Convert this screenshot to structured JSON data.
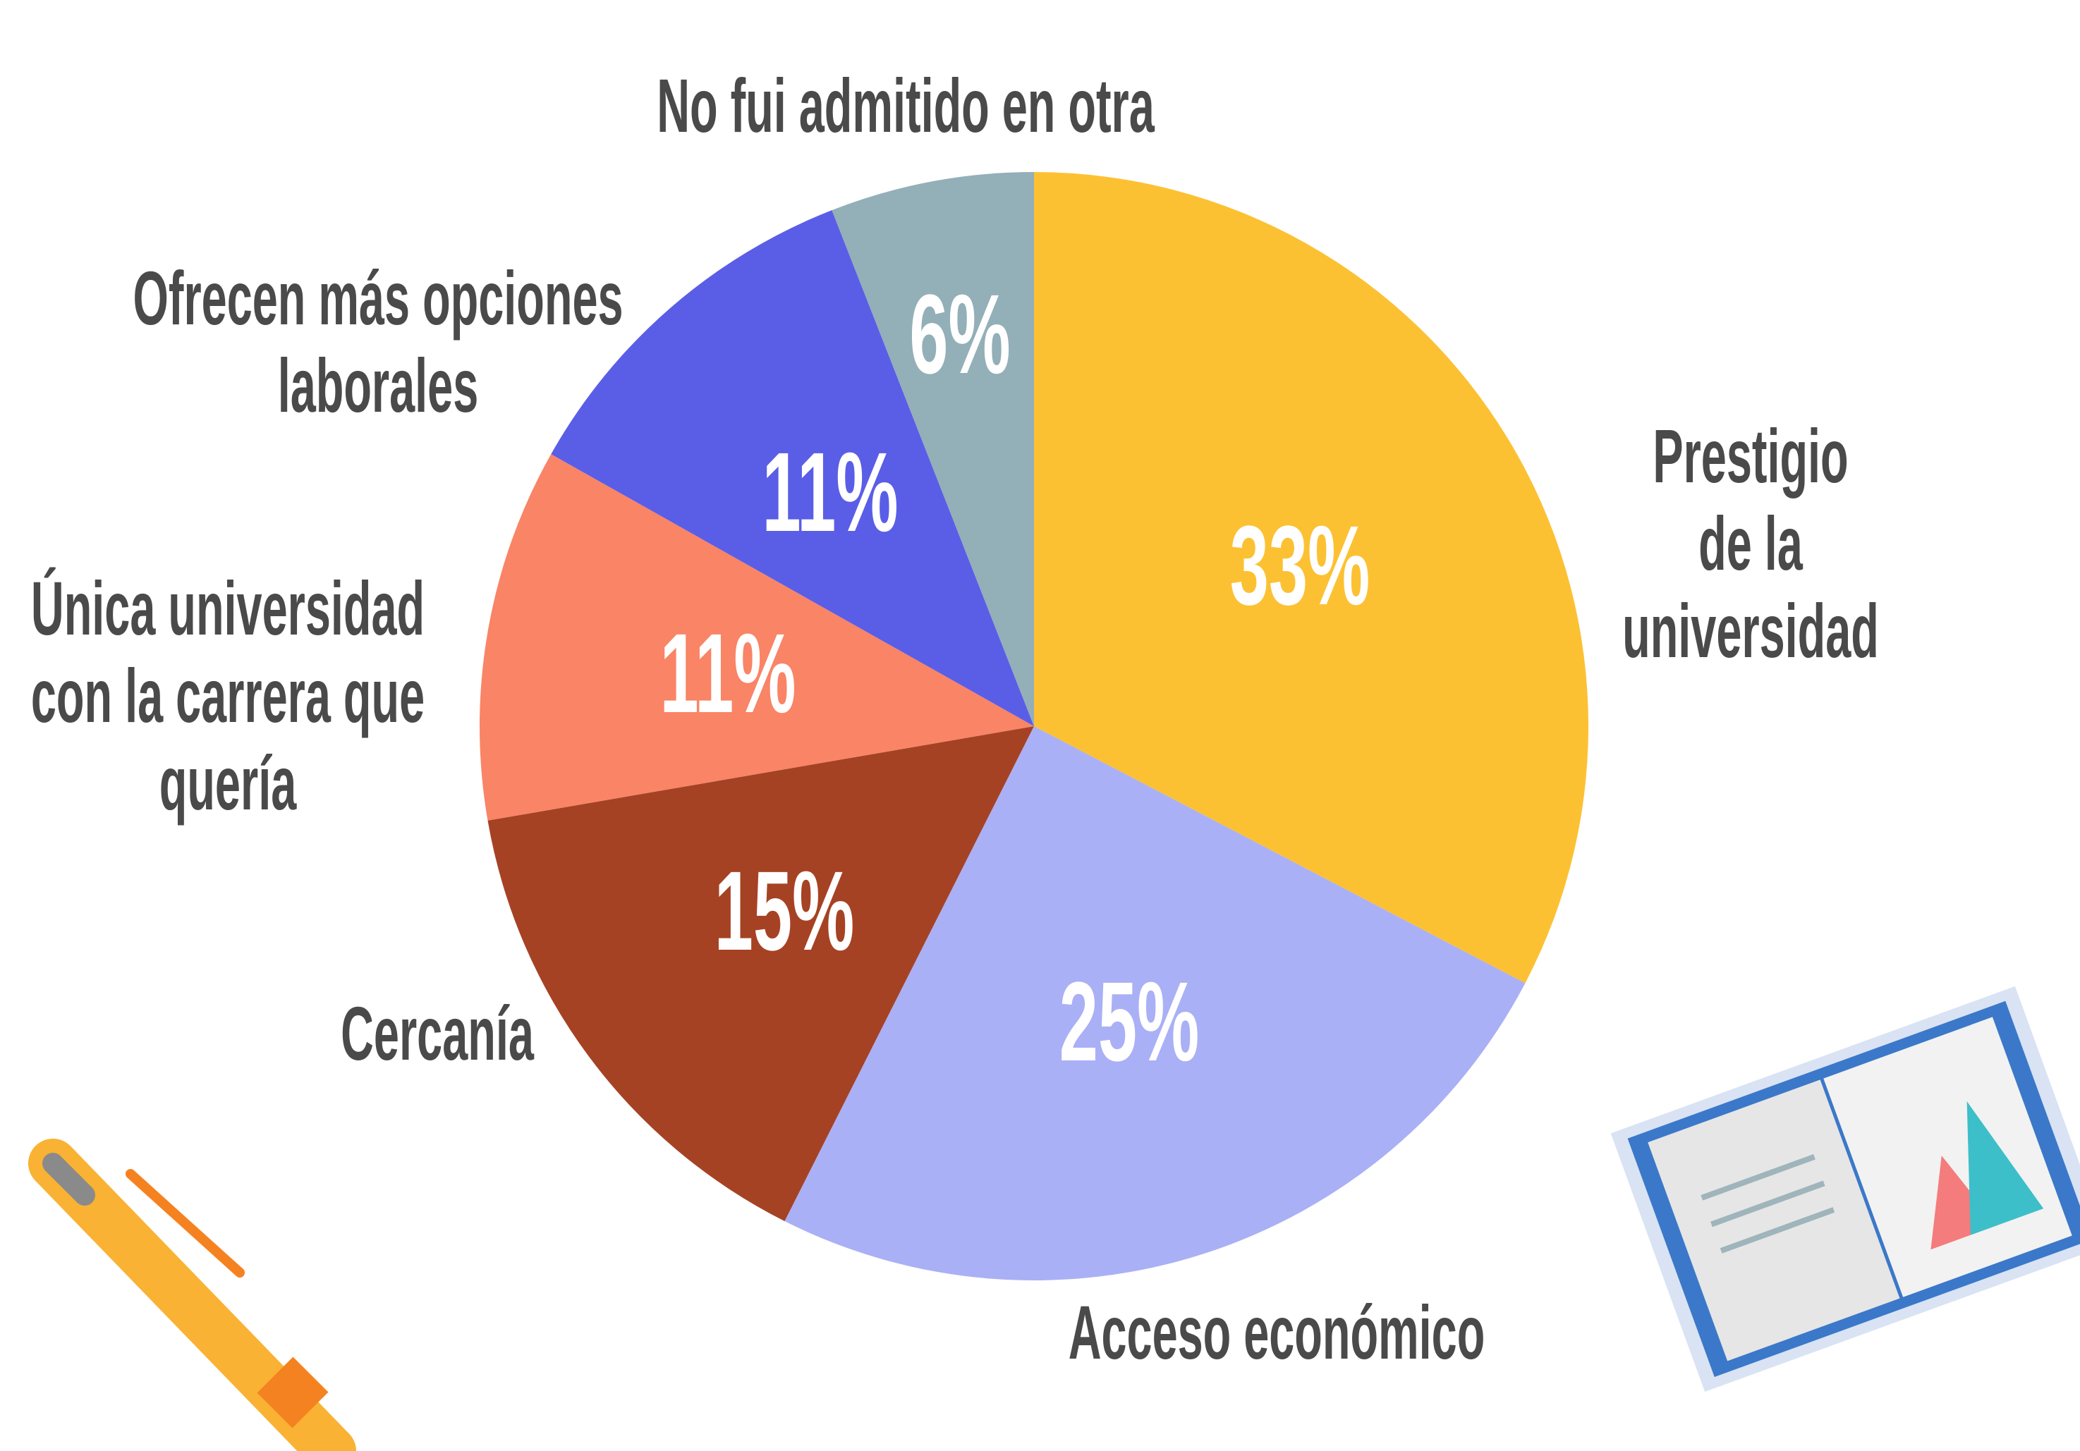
{
  "chart_data": {
    "type": "pie",
    "categories": [
      "Prestigio de la\nuniversidad",
      "Acceso económico",
      "Cercanía",
      "Única universidad\ncon la carrera que\nquería",
      "Ofrecen más opciones\nlaborales",
      "No fui admitido en otra"
    ],
    "values": [
      33,
      25,
      15,
      11,
      11,
      6
    ],
    "value_labels": [
      "33%",
      "25%",
      "15%",
      "11%",
      "11%",
      "6%"
    ],
    "colors": [
      "#FCC133",
      "#AAB0F5",
      "#A64224",
      "#F98466",
      "#5A5EE6",
      "#93AFB8"
    ]
  }
}
